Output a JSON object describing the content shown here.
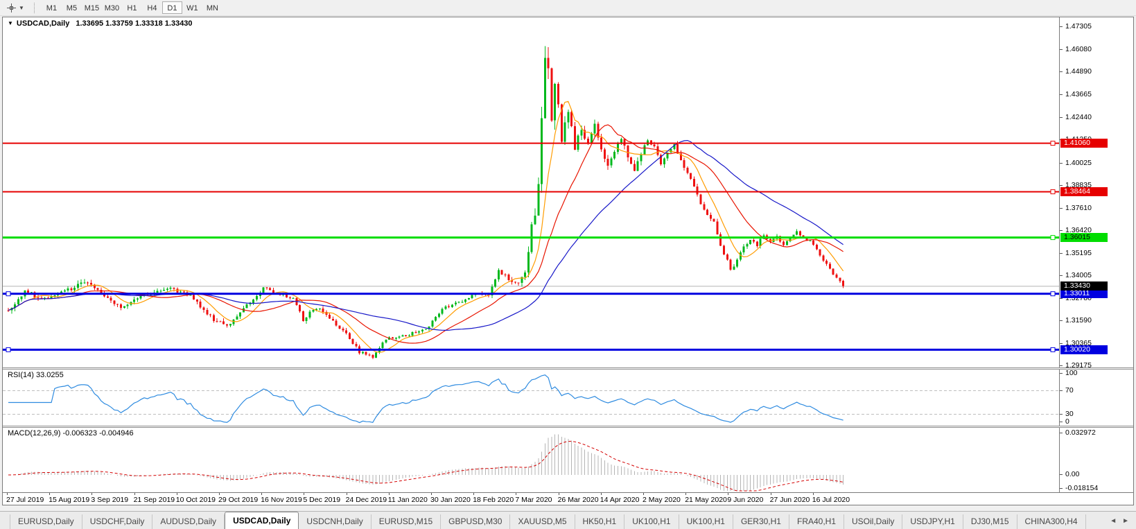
{
  "toolbar": {
    "tool_icon": "crosshair",
    "dropdown_icon": "▼",
    "timeframes": [
      "M1",
      "M5",
      "M15",
      "M30",
      "H1",
      "H4",
      "D1",
      "W1",
      "MN"
    ],
    "active_timeframe": "D1"
  },
  "chart_header": {
    "collapse_icon": "▼",
    "symbol": "USDCAD,Daily",
    "ohlc": "1.33695 1.33759 1.33318 1.33430"
  },
  "indicators": {
    "rsi": {
      "label": "RSI(14) 33.0255",
      "axis_labels": [
        "100",
        "70",
        "30",
        "0"
      ]
    },
    "macd": {
      "label": "MACD(12,26,9) -0.006323 -0.004946",
      "axis_labels": [
        "0.032972",
        "0.00",
        "-0.018154"
      ]
    }
  },
  "tabs": {
    "items": [
      {
        "label": "EURUSD,Daily",
        "active": false
      },
      {
        "label": "USDCHF,Daily",
        "active": false
      },
      {
        "label": "AUDUSD,Daily",
        "active": false
      },
      {
        "label": "USDCAD,Daily",
        "active": true
      },
      {
        "label": "USDCNH,Daily",
        "active": false
      },
      {
        "label": "EURUSD,M15",
        "active": false
      },
      {
        "label": "GBPUSD,M30",
        "active": false
      },
      {
        "label": "XAUUSD,M5",
        "active": false
      },
      {
        "label": "HK50,H1",
        "active": false
      },
      {
        "label": "UK100,H1",
        "active": false
      },
      {
        "label": "UK100,H1",
        "active": false
      },
      {
        "label": "GER30,H1",
        "active": false
      },
      {
        "label": "FRA40,H1",
        "active": false
      },
      {
        "label": "USOil,Daily",
        "active": false
      },
      {
        "label": "USDJPY,H1",
        "active": false
      },
      {
        "label": "DJ30,M15",
        "active": false
      },
      {
        "label": "CHINA300,H4",
        "active": false
      }
    ],
    "scroll_left_icon": "◄",
    "scroll_right_icon": "►"
  },
  "chart_data": {
    "type": "candlestick",
    "symbol": "USDCAD",
    "timeframe": "Daily",
    "last_ohlc": {
      "open": 1.33695,
      "high": 1.33759,
      "low": 1.33318,
      "close": 1.3343
    },
    "y_axis_ticks": [
      "1.47305",
      "1.46080",
      "1.44890",
      "1.43665",
      "1.42440",
      "1.41250",
      "1.40025",
      "1.38835",
      "1.37610",
      "1.36420",
      "1.35195",
      "1.34005",
      "1.32780",
      "1.31590",
      "1.30365",
      "1.29175"
    ],
    "x_axis_dates": [
      "27 Jul 2019",
      "15 Aug 2019",
      "3 Sep 2019",
      "21 Sep 2019",
      "10 Oct 2019",
      "29 Oct 2019",
      "16 Nov 2019",
      "5 Dec 2019",
      "24 Dec 2019",
      "11 Jan 2020",
      "30 Jan 2020",
      "18 Feb 2020",
      "7 Mar 2020",
      "26 Mar 2020",
      "14 Apr 2020",
      "2 May 2020",
      "21 May 2020",
      "9 Jun 2020",
      "27 Jun 2020",
      "16 Jul 2020"
    ],
    "view_price_range": {
      "top": 1.4779,
      "bottom": 1.2907
    },
    "horizontal_lines": [
      {
        "price": 1.4106,
        "label": "1.41060",
        "color": "#e60000",
        "badge_fg": "#ffffff",
        "thickness": 2,
        "handle": "right"
      },
      {
        "price": 1.38464,
        "label": "1.38464",
        "color": "#e60000",
        "badge_fg": "#ffffff",
        "thickness": 2,
        "handle": "right"
      },
      {
        "price": 1.36015,
        "label": "1.36015",
        "color": "#00dd00",
        "badge_fg": "#000000",
        "thickness": 3,
        "handle": "right"
      },
      {
        "price": 1.33011,
        "label": "1.33011",
        "color": "#0000e0",
        "badge_fg": "#ffffff",
        "thickness": 3,
        "handle": "both"
      },
      {
        "price": 1.3002,
        "label": "1.30020",
        "color": "#0000e0",
        "badge_fg": "#ffffff",
        "thickness": 3,
        "handle": "both"
      }
    ],
    "current_price": {
      "price": 1.3343,
      "label": "1.33430",
      "line_color": "#b4b4b4",
      "badge_bg": "#000000",
      "badge_fg": "#ffffff"
    },
    "candle_colors": {
      "bull": "#00b81c",
      "bear": "#ee1111"
    },
    "moving_averages": [
      {
        "period": 8,
        "color": "#ff9c00"
      },
      {
        "period": 21,
        "color": "#e81400"
      },
      {
        "period": 45,
        "color": "#1616c8"
      }
    ],
    "rsi": {
      "period": 14,
      "value": 33.0255,
      "color": "#2e8be0",
      "levels": [
        70,
        30
      ],
      "level_color": "#bdbdbd"
    },
    "macd": {
      "fast": 12,
      "slow": 26,
      "signal": 9,
      "macd_value": -0.006323,
      "signal_value": -0.004946,
      "hist_color": "#b4b4b4",
      "signal_color": "#d40000",
      "axis_top": 0.032972,
      "axis_bottom": -0.018154
    },
    "n_candles": 253,
    "series_waypoints": {
      "idx": [
        0,
        5,
        10,
        15,
        24,
        30,
        34,
        40,
        49,
        55,
        62,
        66,
        72,
        77,
        82,
        86,
        89,
        93,
        97,
        102,
        106,
        110,
        114,
        120,
        126,
        131,
        136,
        141,
        145,
        148,
        151,
        154,
        156,
        158,
        159,
        160,
        161,
        162,
        163,
        164,
        165,
        166,
        167,
        168,
        169,
        171,
        173,
        175,
        177,
        179,
        181,
        183,
        185,
        187,
        189,
        191,
        193,
        195,
        197,
        199,
        201,
        203,
        205,
        207,
        209,
        211,
        213,
        215,
        217,
        218,
        220,
        222,
        224,
        226,
        228,
        230,
        232,
        234,
        236,
        238,
        240,
        242,
        244,
        246,
        248,
        250,
        252
      ],
      "close": [
        1.321,
        1.332,
        1.327,
        1.3295,
        1.337,
        1.328,
        1.323,
        1.329,
        1.333,
        1.329,
        1.316,
        1.313,
        1.324,
        1.333,
        1.33,
        1.327,
        1.3165,
        1.323,
        1.317,
        1.309,
        1.299,
        1.2965,
        1.306,
        1.308,
        1.311,
        1.322,
        1.3255,
        1.33,
        1.329,
        1.343,
        1.338,
        1.335,
        1.342,
        1.365,
        1.374,
        1.392,
        1.428,
        1.458,
        1.448,
        1.425,
        1.442,
        1.433,
        1.412,
        1.421,
        1.428,
        1.409,
        1.417,
        1.411,
        1.42,
        1.406,
        1.398,
        1.407,
        1.414,
        1.403,
        1.396,
        1.406,
        1.412,
        1.408,
        1.399,
        1.405,
        1.41,
        1.402,
        1.394,
        1.388,
        1.379,
        1.372,
        1.368,
        1.355,
        1.348,
        1.342,
        1.348,
        1.355,
        1.359,
        1.356,
        1.362,
        1.358,
        1.361,
        1.356,
        1.36,
        1.363,
        1.36,
        1.358,
        1.354,
        1.348,
        1.343,
        1.339,
        1.3343
      ],
      "vol": [
        0.0035,
        0.0035,
        0.003,
        0.003,
        0.0035,
        0.003,
        0.003,
        0.0028,
        0.0028,
        0.0026,
        0.003,
        0.0028,
        0.0028,
        0.0028,
        0.0025,
        0.0025,
        0.0028,
        0.0026,
        0.0025,
        0.0025,
        0.0022,
        0.002,
        0.002,
        0.002,
        0.002,
        0.0022,
        0.002,
        0.0022,
        0.0022,
        0.0035,
        0.0032,
        0.0032,
        0.004,
        0.007,
        0.008,
        0.01,
        0.013,
        0.013,
        0.012,
        0.011,
        0.01,
        0.009,
        0.008,
        0.007,
        0.006,
        0.006,
        0.005,
        0.005,
        0.005,
        0.0045,
        0.0045,
        0.004,
        0.004,
        0.004,
        0.004,
        0.004,
        0.0038,
        0.0035,
        0.0035,
        0.0032,
        0.0032,
        0.003,
        0.003,
        0.003,
        0.003,
        0.0028,
        0.0028,
        0.0028,
        0.0028,
        0.003,
        0.0026,
        0.0026,
        0.0024,
        0.0024,
        0.0022,
        0.0022,
        0.0022,
        0.002,
        0.002,
        0.002,
        0.002,
        0.002,
        0.002,
        0.002,
        0.002,
        0.0018,
        0.0018
      ]
    }
  }
}
